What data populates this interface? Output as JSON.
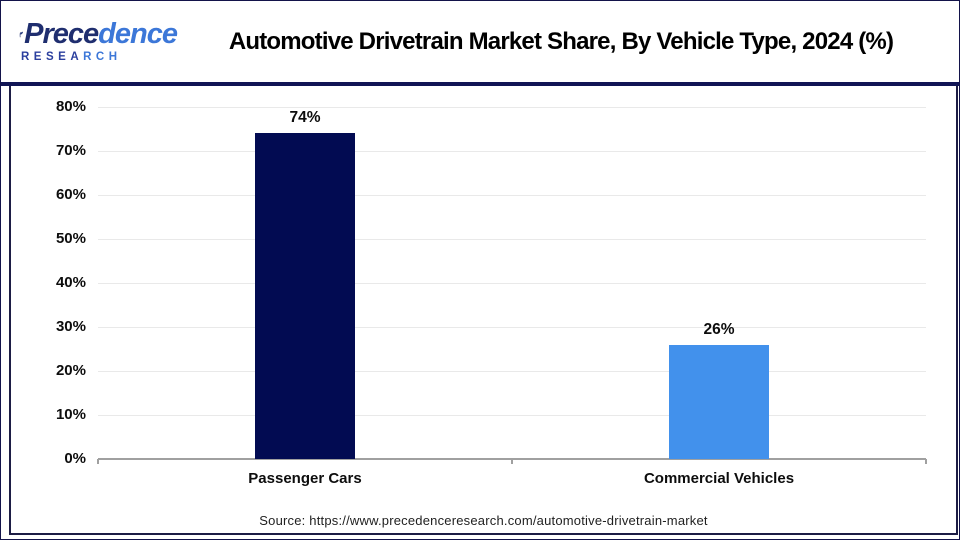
{
  "header": {
    "logo": {
      "name_part1": "Prece",
      "name_part2": "dence",
      "sub_part1": "RESEA",
      "sub_part2": "RCH"
    },
    "title": "Automotive Drivetrain Market Share, By Vehicle Type, 2024 (%)"
  },
  "chart_data": {
    "type": "bar",
    "title": "Automotive Drivetrain Market Share, By Vehicle Type, 2024 (%)",
    "categories": [
      "Passenger Cars",
      "Commercial Vehicles"
    ],
    "values": [
      74,
      26
    ],
    "value_labels": [
      "74%",
      "26%"
    ],
    "bar_colors": [
      "#020b52",
      "#4291ec"
    ],
    "ylim": [
      0,
      80
    ],
    "ytick_step": 10,
    "ytick_labels": [
      "0%",
      "10%",
      "20%",
      "30%",
      "40%",
      "50%",
      "60%",
      "70%",
      "80%"
    ],
    "grid": "horizontal",
    "legend_position": "none",
    "xlabel": "",
    "ylabel": ""
  },
  "footer": {
    "source": "Source: https://www.precedenceresearch.com/automotive-drivetrain-market"
  },
  "colors": {
    "bar_passenger_cars": "#020b52",
    "bar_commercial_vehicles": "#4291ec",
    "header_divider": "#111555",
    "panel_border": "#1d1d45",
    "gridline": "#e9e9e9",
    "axis": "#a0a0a0",
    "logo_dark_blue": "#1f2e6f",
    "logo_bright_blue": "#3c77d8"
  }
}
